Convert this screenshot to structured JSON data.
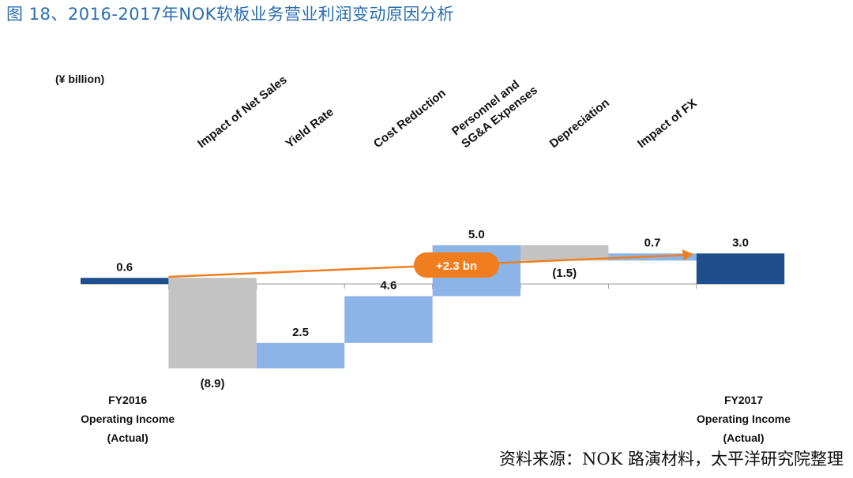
{
  "figure_title": "图 18、2016-2017年NOK软板业务营业利润变动原因分析",
  "source_note": "资料来源：NOK 路演材料，太平洋研究院整理",
  "colors": {
    "endpoint": "#1f4e8c",
    "increase": "#8db4e6",
    "decrease": "#c3c3c3",
    "arrow": "#f07d1e",
    "title": "#2a6db0"
  },
  "chart_data": {
    "type": "bar",
    "subtype": "waterfall",
    "unit_label": "(¥ billion)",
    "categories": [
      "Impact of Net Sales",
      "Yield Rate",
      "Cost Reduction",
      "Personnel and SG&A Expenses",
      "Depreciation",
      "Impact of FX"
    ],
    "start": {
      "label_lines": [
        "FY2016",
        "Operating Income",
        "(Actual)"
      ],
      "value": 0.6,
      "value_label": "0.6"
    },
    "steps": [
      {
        "category": "Impact of Net Sales",
        "value": -8.9,
        "value_label": "(8.9)"
      },
      {
        "category": "Yield Rate",
        "value": 2.5,
        "value_label": "2.5"
      },
      {
        "category": "Cost Reduction",
        "value": 4.6,
        "value_label": "4.6"
      },
      {
        "category": "Personnel and SG&A Expenses",
        "value": 5.0,
        "value_label": "5.0"
      },
      {
        "category": "Depreciation",
        "value": -1.5,
        "value_label": "(1.5)"
      },
      {
        "category": "Impact of FX",
        "value": 0.7,
        "value_label": "0.7"
      }
    ],
    "end": {
      "label_lines": [
        "FY2017",
        "Operating Income",
        "(Actual)"
      ],
      "value": 3.0,
      "value_label": "3.0"
    },
    "annotation": {
      "text": "+2.3 bn"
    }
  }
}
